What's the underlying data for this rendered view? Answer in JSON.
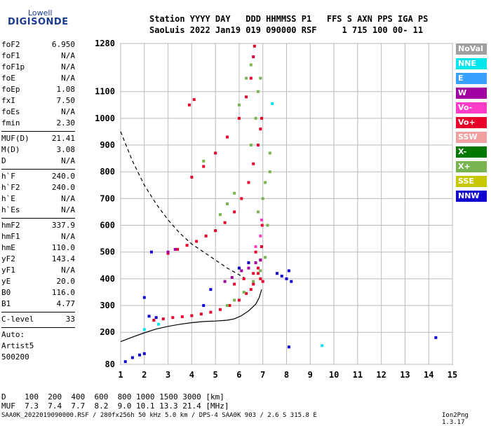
{
  "logo": {
    "top": "Lowell",
    "main": "DIGISONDE"
  },
  "header": {
    "line1": "Station YYYY DAY   DDD HHMMSS P1   FFS S AXN PPS IGA PS",
    "line2": "SaoLuis 2022 Jan19 019 090000 RSF     1 715 100 00- 11"
  },
  "params": {
    "group1": [
      {
        "k": "foF2",
        "v": "6.950"
      },
      {
        "k": "foF1",
        "v": "N/A"
      },
      {
        "k": "foF1p",
        "v": "N/A"
      },
      {
        "k": "foE",
        "v": "N/A"
      },
      {
        "k": "foEp",
        "v": "1.08"
      },
      {
        "k": "fxI",
        "v": "7.50"
      },
      {
        "k": "foEs",
        "v": "N/A"
      },
      {
        "k": "fmin",
        "v": "2.30"
      }
    ],
    "group2": [
      {
        "k": "MUF(D)",
        "v": "21.41"
      },
      {
        "k": "M(D)",
        "v": "3.08"
      },
      {
        "k": "D",
        "v": "N/A"
      }
    ],
    "group3": [
      {
        "k": "h`F",
        "v": "240.0"
      },
      {
        "k": "h`F2",
        "v": "240.0"
      },
      {
        "k": "h`E",
        "v": "N/A"
      },
      {
        "k": "h`Es",
        "v": "N/A"
      }
    ],
    "group4": [
      {
        "k": "hmF2",
        "v": "337.9"
      },
      {
        "k": "hmF1",
        "v": "N/A"
      },
      {
        "k": "hmE",
        "v": "110.0"
      },
      {
        "k": "yF2",
        "v": "143.4"
      },
      {
        "k": "yF1",
        "v": "N/A"
      },
      {
        "k": "yE",
        "v": "20.0"
      },
      {
        "k": "B0",
        "v": "116.0"
      },
      {
        "k": "B1",
        "v": "4.77"
      }
    ],
    "clevel": {
      "k": "C-level",
      "v": "33"
    },
    "auto": [
      "Auto:",
      "Artist5",
      "500200"
    ]
  },
  "legend": [
    {
      "label": "NoVal",
      "color": "#a0a0a0"
    },
    {
      "label": "NNE",
      "color": "#00e5ee"
    },
    {
      "label": "E",
      "color": "#3aa0ff"
    },
    {
      "label": "W",
      "color": "#a000a0"
    },
    {
      "label": "Vo-",
      "color": "#ff3cc8"
    },
    {
      "label": "Vo+",
      "color": "#e8002a"
    },
    {
      "label": "SSW",
      "color": "#f0a0a0"
    },
    {
      "label": "X-",
      "color": "#007800"
    },
    {
      "label": "X+",
      "color": "#78b450"
    },
    {
      "label": "SSE",
      "color": "#c8c800"
    },
    {
      "label": "NNW",
      "color": "#1000d0"
    }
  ],
  "bottom": {
    "row1": "D    100  200  400  600  800 1000 1500 3000 [km]",
    "row2": "MUF  7.3  7.4  7.7  8.2  9.0 10.1 13.3 21.4 [MHz]"
  },
  "footer": "SAA0K_2022019090000.RSF / 280fx256h 50 kHz 5.0 km / DPS-4 SAA0K 903 / 2.6 S 315.8 E",
  "footer_right": "Ion2Png 1.3.17",
  "chart_data": {
    "type": "scatter",
    "xlim": [
      1,
      15
    ],
    "ylim": [
      80,
      1280
    ],
    "xticks": [
      1,
      2,
      3,
      4,
      5,
      6,
      7,
      8,
      9,
      10,
      11,
      12,
      13,
      14,
      15
    ],
    "yticks": [
      80,
      200,
      300,
      400,
      500,
      600,
      700,
      800,
      900,
      1000,
      1100,
      1280
    ],
    "grid": true,
    "legend_placement": "right",
    "series": [
      {
        "name": "Vo+",
        "color": "#e8002a",
        "points": [
          [
            2.4,
            245
          ],
          [
            2.8,
            250
          ],
          [
            3.2,
            255
          ],
          [
            3.6,
            258
          ],
          [
            4,
            262
          ],
          [
            4.4,
            268
          ],
          [
            4.8,
            275
          ],
          [
            5.2,
            285
          ],
          [
            5.6,
            300
          ],
          [
            6,
            320
          ],
          [
            6.3,
            345
          ],
          [
            6.6,
            380
          ],
          [
            6.8,
            420
          ],
          [
            6.9,
            470
          ],
          [
            6.95,
            520
          ],
          [
            6.97,
            600
          ],
          [
            3,
            495
          ],
          [
            3.4,
            510
          ],
          [
            3.8,
            525
          ],
          [
            4.2,
            540
          ],
          [
            4.6,
            560
          ],
          [
            5,
            580
          ],
          [
            5.4,
            610
          ],
          [
            5.8,
            650
          ],
          [
            6.1,
            700
          ],
          [
            6.4,
            760
          ],
          [
            6.6,
            830
          ],
          [
            6.8,
            900
          ],
          [
            6.9,
            960
          ],
          [
            6.95,
            1000
          ],
          [
            4,
            780
          ],
          [
            4.5,
            820
          ],
          [
            5,
            870
          ],
          [
            5.5,
            930
          ],
          [
            6,
            1000
          ],
          [
            6.3,
            1080
          ],
          [
            6.5,
            1150
          ],
          [
            6.6,
            1230
          ],
          [
            6.65,
            1270
          ],
          [
            3.9,
            1050
          ],
          [
            4.1,
            1070
          ],
          [
            6.8,
            440
          ],
          [
            6.9,
            400
          ],
          [
            7.0,
            390
          ],
          [
            5.8,
            380
          ],
          [
            6.2,
            400
          ],
          [
            6.5,
            360
          ],
          [
            6.6,
            420
          ],
          [
            6.7,
            500
          ]
        ]
      },
      {
        "name": "X+",
        "color": "#78b450",
        "points": [
          [
            5.5,
            300
          ],
          [
            5.8,
            320
          ],
          [
            6.2,
            350
          ],
          [
            6.6,
            390
          ],
          [
            6.9,
            430
          ],
          [
            7.1,
            480
          ],
          [
            7.2,
            600
          ],
          [
            7.3,
            800
          ],
          [
            7.3,
            870
          ],
          [
            6.8,
            650
          ],
          [
            7,
            700
          ],
          [
            7.1,
            760
          ],
          [
            6.5,
            900
          ],
          [
            6.7,
            1000
          ],
          [
            6.8,
            1100
          ],
          [
            6.9,
            1150
          ],
          [
            5.2,
            640
          ],
          [
            5.5,
            680
          ],
          [
            5.8,
            720
          ],
          [
            4.5,
            840
          ],
          [
            6,
            1050
          ],
          [
            6.3,
            1150
          ],
          [
            6.5,
            1200
          ]
        ]
      },
      {
        "name": "NNW",
        "color": "#1000d0",
        "points": [
          [
            1.2,
            90
          ],
          [
            1.5,
            105
          ],
          [
            1.8,
            115
          ],
          [
            2.0,
            120
          ],
          [
            2.2,
            260
          ],
          [
            2.5,
            255
          ],
          [
            7.8,
            410
          ],
          [
            8.0,
            400
          ],
          [
            8.2,
            390
          ],
          [
            7.6,
            420
          ],
          [
            8.1,
            430
          ],
          [
            4.5,
            300
          ],
          [
            4.8,
            360
          ],
          [
            6,
            440
          ],
          [
            6.4,
            460
          ],
          [
            2.3,
            500
          ],
          [
            2.0,
            330
          ],
          [
            14.3,
            180
          ],
          [
            8.1,
            145
          ]
        ]
      },
      {
        "name": "W",
        "color": "#a000a0",
        "points": [
          [
            3.0,
            500
          ],
          [
            3.3,
            510
          ],
          [
            5.4,
            390
          ],
          [
            5.7,
            405
          ],
          [
            6.1,
            430
          ],
          [
            6.4,
            440
          ],
          [
            6.7,
            460
          ],
          [
            6.9,
            470
          ]
        ]
      },
      {
        "name": "NNE",
        "color": "#00e5ee",
        "points": [
          [
            7.4,
            1055
          ],
          [
            9.5,
            150
          ],
          [
            2.0,
            210
          ],
          [
            2.6,
            230
          ]
        ]
      },
      {
        "name": "Vo-",
        "color": "#ff3cc8",
        "points": [
          [
            6.7,
            520
          ],
          [
            6.9,
            560
          ],
          [
            6.95,
            620
          ]
        ]
      }
    ],
    "curves": [
      {
        "name": "profile",
        "style": "solid",
        "x": [
          1,
          1.5,
          2,
          2.5,
          3,
          3.5,
          4,
          4.5,
          5,
          5.5,
          5.8,
          6.1,
          6.4,
          6.7,
          6.85,
          6.95
        ],
        "y": [
          165,
          182,
          198,
          212,
          222,
          230,
          236,
          240,
          242,
          245,
          250,
          262,
          280,
          305,
          330,
          360
        ]
      },
      {
        "name": "MUF-curve",
        "style": "dashed",
        "x": [
          1,
          1.5,
          2,
          2.5,
          3,
          3.5,
          4,
          4.5,
          5,
          5.5,
          6.2
        ],
        "y": [
          950,
          840,
          750,
          680,
          620,
          570,
          530,
          500,
          470,
          440,
          405
        ]
      }
    ]
  }
}
